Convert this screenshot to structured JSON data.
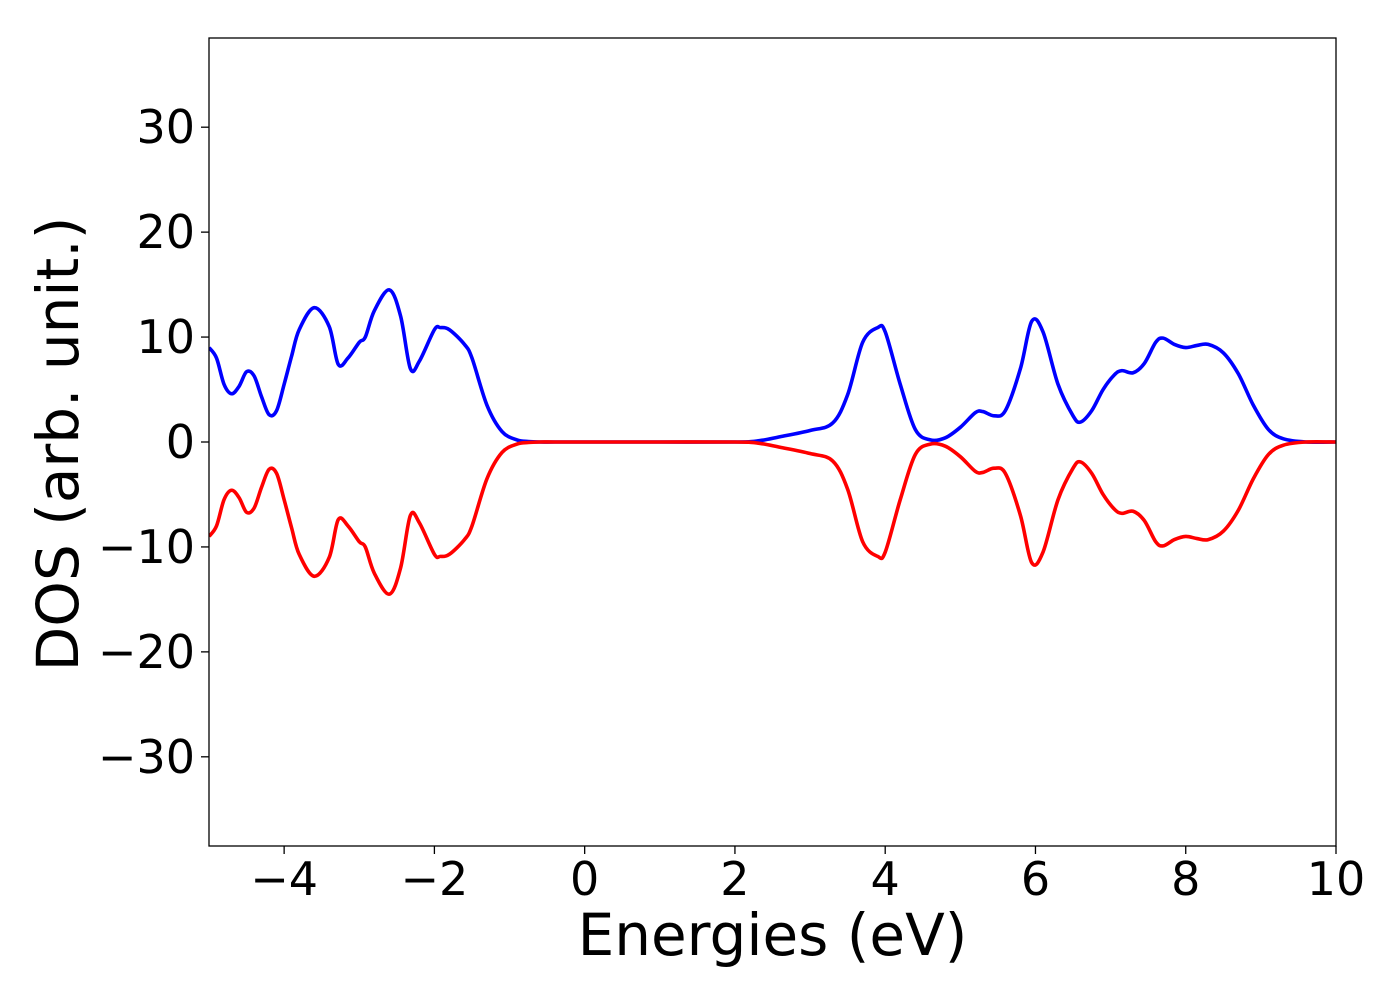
{
  "chart_data": {
    "type": "line",
    "title": "",
    "xlabel": "Energies (eV)",
    "ylabel": "DOS (arb. unit.)",
    "xlim": [
      -5,
      10
    ],
    "ylim": [
      -38.5,
      38.5
    ],
    "xticks": [
      -4,
      -2,
      0,
      2,
      4,
      6,
      8,
      10
    ],
    "xtick_labels": [
      "−4",
      "−2",
      "0",
      "2",
      "4",
      "6",
      "8",
      "10"
    ],
    "yticks": [
      -30,
      -20,
      -10,
      0,
      10,
      20,
      30
    ],
    "ytick_labels": [
      "−30",
      "−20",
      "−10",
      "0",
      "10",
      "20",
      "30"
    ],
    "grid": false,
    "legend": "none",
    "series": [
      {
        "color": "#0000ff",
        "x": [
          -5.0,
          -4.9,
          -4.8,
          -4.7,
          -4.6,
          -4.5,
          -4.4,
          -4.3,
          -4.2,
          -4.1,
          -4.0,
          -3.9,
          -3.8,
          -3.6,
          -3.4,
          -3.28,
          -3.15,
          -3.0,
          -2.92,
          -2.8,
          -2.6,
          -2.45,
          -2.32,
          -2.2,
          -2.0,
          -1.92,
          -1.8,
          -1.6,
          -1.5,
          -1.3,
          -1.1,
          -0.9,
          -0.75,
          -0.6,
          -0.4,
          0.0,
          1.0,
          2.0,
          2.3,
          2.6,
          3.0,
          3.3,
          3.5,
          3.7,
          3.9,
          4.0,
          4.2,
          4.4,
          4.6,
          4.8,
          5.0,
          5.2,
          5.3,
          5.45,
          5.6,
          5.8,
          5.95,
          6.1,
          6.3,
          6.5,
          6.6,
          6.75,
          6.9,
          7.05,
          7.15,
          7.3,
          7.45,
          7.6,
          7.7,
          7.85,
          8.0,
          8.15,
          8.3,
          8.5,
          8.7,
          8.9,
          9.1,
          9.3,
          9.6,
          10.0
        ],
        "y": [
          9.0,
          8.0,
          5.5,
          4.6,
          5.3,
          6.7,
          6.3,
          4.3,
          2.6,
          3.0,
          5.5,
          8.2,
          10.7,
          12.8,
          11.0,
          7.4,
          8.0,
          9.5,
          10.0,
          12.5,
          14.5,
          12.0,
          7.0,
          7.7,
          10.7,
          10.9,
          10.7,
          9.3,
          8.0,
          3.5,
          1.0,
          0.2,
          0.05,
          0.0,
          0.0,
          0.0,
          0.0,
          0.0,
          0.1,
          0.5,
          1.1,
          1.8,
          4.5,
          9.5,
          10.9,
          10.5,
          5.5,
          1.2,
          0.2,
          0.4,
          1.4,
          2.8,
          2.9,
          2.5,
          3.0,
          7.0,
          11.5,
          10.5,
          5.5,
          2.5,
          1.9,
          3.0,
          5.0,
          6.4,
          6.8,
          6.6,
          7.5,
          9.5,
          9.9,
          9.3,
          9.0,
          9.2,
          9.3,
          8.5,
          6.5,
          3.5,
          1.2,
          0.3,
          0.0,
          0.0
        ]
      },
      {
        "color": "#ff0000",
        "x": [
          -5.0,
          -4.9,
          -4.8,
          -4.7,
          -4.6,
          -4.5,
          -4.4,
          -4.3,
          -4.2,
          -4.1,
          -4.0,
          -3.9,
          -3.8,
          -3.6,
          -3.4,
          -3.28,
          -3.15,
          -3.0,
          -2.92,
          -2.8,
          -2.6,
          -2.45,
          -2.32,
          -2.2,
          -2.0,
          -1.92,
          -1.8,
          -1.6,
          -1.5,
          -1.3,
          -1.1,
          -0.9,
          -0.75,
          -0.6,
          -0.4,
          0.0,
          1.0,
          2.0,
          2.3,
          2.6,
          3.0,
          3.3,
          3.5,
          3.7,
          3.9,
          4.0,
          4.2,
          4.4,
          4.6,
          4.8,
          5.0,
          5.2,
          5.3,
          5.45,
          5.6,
          5.8,
          5.95,
          6.1,
          6.3,
          6.5,
          6.6,
          6.75,
          6.9,
          7.05,
          7.15,
          7.3,
          7.45,
          7.6,
          7.7,
          7.85,
          8.0,
          8.15,
          8.3,
          8.5,
          8.7,
          8.9,
          9.1,
          9.3,
          9.6,
          10.0
        ],
        "y": [
          -9.0,
          -8.0,
          -5.5,
          -4.6,
          -5.3,
          -6.7,
          -6.3,
          -4.3,
          -2.6,
          -3.0,
          -5.5,
          -8.2,
          -10.7,
          -12.8,
          -11.0,
          -7.4,
          -8.0,
          -9.5,
          -10.0,
          -12.5,
          -14.5,
          -12.0,
          -7.0,
          -7.7,
          -10.7,
          -10.9,
          -10.7,
          -9.3,
          -8.0,
          -3.5,
          -1.0,
          -0.2,
          -0.05,
          0.0,
          0.0,
          0.0,
          0.0,
          0.0,
          -0.1,
          -0.5,
          -1.1,
          -1.8,
          -4.5,
          -9.5,
          -10.9,
          -10.5,
          -5.5,
          -1.2,
          -0.2,
          -0.4,
          -1.4,
          -2.8,
          -2.9,
          -2.5,
          -3.0,
          -7.0,
          -11.5,
          -10.5,
          -5.5,
          -2.5,
          -1.9,
          -3.0,
          -5.0,
          -6.4,
          -6.8,
          -6.6,
          -7.5,
          -9.5,
          -9.9,
          -9.3,
          -9.0,
          -9.2,
          -9.3,
          -8.5,
          -6.5,
          -3.5,
          -1.2,
          -0.3,
          0.0,
          0.0
        ]
      }
    ]
  }
}
